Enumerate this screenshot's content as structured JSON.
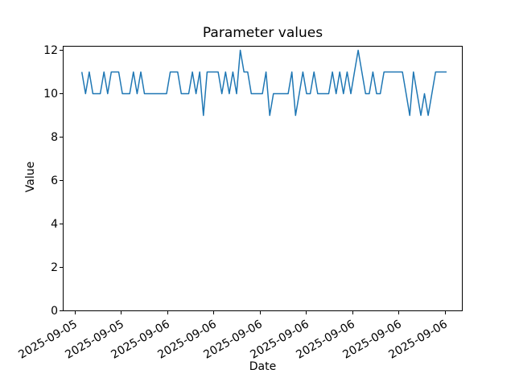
{
  "chart_data": {
    "type": "line",
    "title": "Parameter values",
    "xlabel": "Date",
    "ylabel": "Value",
    "grid": false,
    "legend": null,
    "line_color": "#1f77b4",
    "marker": "none",
    "ylim": [
      0,
      12.2
    ],
    "y_tick_labels": [
      "0",
      "2",
      "4",
      "6",
      "8",
      "10",
      "12"
    ],
    "x_tick_labels": [
      "2025-09-05",
      "2025-09-05",
      "2025-09-06",
      "2025-09-06",
      "2025-09-06",
      "2025-09-06",
      "2025-09-06",
      "2025-09-06",
      "2025-09-06"
    ],
    "series": [
      {
        "name": "parameter-values",
        "values": [
          11,
          10,
          11,
          10,
          10,
          10,
          11,
          10,
          11,
          11,
          11,
          10,
          10,
          10,
          11,
          10,
          11,
          10,
          10,
          10,
          10,
          10,
          10,
          10,
          11,
          11,
          11,
          10,
          10,
          10,
          11,
          10,
          11,
          9,
          11,
          11,
          11,
          11,
          10,
          11,
          10,
          11,
          10,
          12,
          11,
          11,
          10,
          10,
          10,
          10,
          11,
          9,
          10,
          10,
          10,
          10,
          10,
          11,
          9,
          10,
          11,
          10,
          10,
          11,
          10,
          10,
          10,
          10,
          11,
          10,
          11,
          10,
          11,
          10,
          11,
          12,
          11,
          10,
          10,
          11,
          10,
          10,
          11,
          11,
          11,
          11,
          11,
          11,
          10,
          9,
          11,
          10,
          9,
          10,
          9,
          10,
          11,
          11,
          11,
          11
        ]
      }
    ]
  }
}
